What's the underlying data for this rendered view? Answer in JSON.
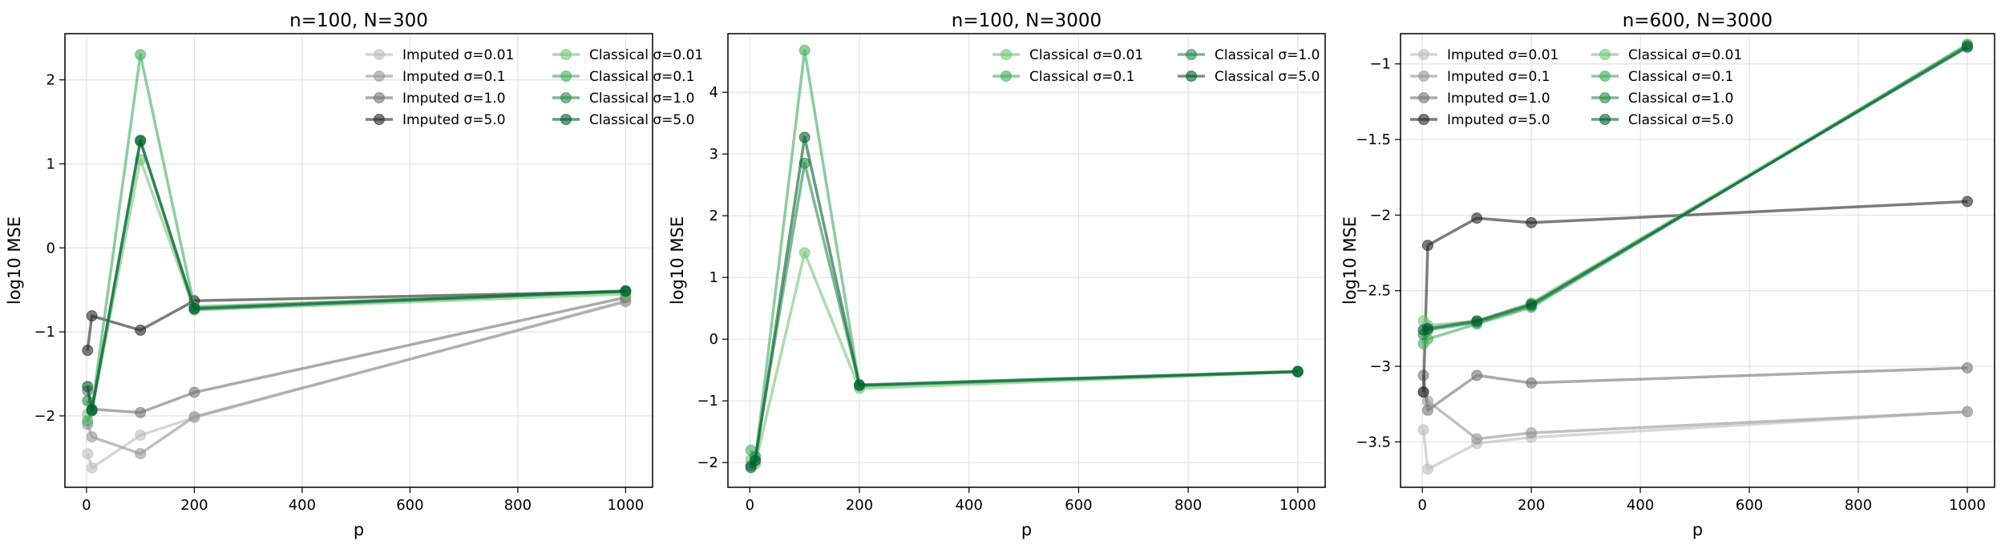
{
  "chart_data": [
    {
      "type": "line",
      "title": "n=100, N=300",
      "xlabel": "p",
      "ylabel": "log10 MSE",
      "xlim": [
        -40,
        1050
      ],
      "ylim": [
        -2.85,
        2.55
      ],
      "xticks": [
        0,
        200,
        400,
        600,
        800,
        1000
      ],
      "yticks": [
        -2,
        -1,
        0,
        1,
        2
      ],
      "grid": true,
      "legend": "upper right, 2 columns",
      "series": [
        {
          "name": "Imputed σ=0.01",
          "color": "#bdbdbd",
          "x": [
            2,
            10,
            100,
            200,
            1000
          ],
          "y": [
            -2.45,
            -2.62,
            -2.23,
            -2.02,
            -0.63
          ]
        },
        {
          "name": "Imputed σ=0.1",
          "color": "#969696",
          "x": [
            2,
            10,
            100,
            200,
            1000
          ],
          "y": [
            -2.1,
            -2.25,
            -2.45,
            -2.01,
            -0.64
          ]
        },
        {
          "name": "Imputed σ=1.0",
          "color": "#737373",
          "x": [
            2,
            10,
            100,
            200,
            1000
          ],
          "y": [
            -1.7,
            -1.92,
            -1.96,
            -1.72,
            -0.59
          ]
        },
        {
          "name": "Imputed σ=5.0",
          "color": "#252525",
          "x": [
            2,
            10,
            100,
            200,
            1000
          ],
          "y": [
            -1.22,
            -0.81,
            -0.98,
            -0.63,
            -0.52
          ]
        },
        {
          "name": "Classical σ=0.01",
          "color": "#74c476",
          "x": [
            2,
            10,
            100,
            200,
            1000
          ],
          "y": [
            -1.98,
            -1.93,
            1.05,
            -0.74,
            -0.55
          ]
        },
        {
          "name": "Classical σ=0.1",
          "color": "#41ab5d",
          "x": [
            2,
            10,
            100,
            200,
            1000
          ],
          "y": [
            -2.06,
            -1.92,
            2.3,
            -0.7,
            -0.52
          ]
        },
        {
          "name": "Classical σ=1.0",
          "color": "#238b45",
          "x": [
            2,
            10,
            100,
            200,
            1000
          ],
          "y": [
            -1.82,
            -1.94,
            1.27,
            -0.73,
            -0.52
          ]
        },
        {
          "name": "Classical σ=5.0",
          "color": "#005a32",
          "x": [
            2,
            10,
            100,
            200,
            1000
          ],
          "y": [
            -1.65,
            -1.93,
            1.28,
            -0.72,
            -0.51
          ]
        }
      ]
    },
    {
      "type": "line",
      "title": "n=100, N=3000",
      "xlabel": "p",
      "ylabel": "log10 MSE",
      "xlim": [
        -40,
        1050
      ],
      "ylim": [
        -2.4,
        4.95
      ],
      "xticks": [
        0,
        200,
        400,
        600,
        800,
        1000
      ],
      "yticks": [
        -2,
        -1,
        0,
        1,
        2,
        3,
        4
      ],
      "grid": true,
      "legend": "upper right, 2 columns",
      "series": [
        {
          "name": "Classical σ=0.01",
          "color": "#74c476",
          "x": [
            2,
            10,
            100,
            200,
            1000
          ],
          "y": [
            -1.95,
            -2.02,
            1.4,
            -0.8,
            -0.53
          ]
        },
        {
          "name": "Classical σ=0.1",
          "color": "#41ab5d",
          "x": [
            2,
            10,
            100,
            200,
            1000
          ],
          "y": [
            -1.8,
            -1.95,
            4.68,
            -0.76,
            -0.53
          ]
        },
        {
          "name": "Classical σ=1.0",
          "color": "#238b45",
          "x": [
            2,
            10,
            100,
            200,
            1000
          ],
          "y": [
            -2.05,
            -1.9,
            2.85,
            -0.75,
            -0.53
          ]
        },
        {
          "name": "Classical σ=5.0",
          "color": "#005a32",
          "x": [
            2,
            10,
            100,
            200,
            1000
          ],
          "y": [
            -2.08,
            -1.97,
            3.27,
            -0.74,
            -0.52
          ]
        }
      ]
    },
    {
      "type": "line",
      "title": "n=600, N=3000",
      "xlabel": "p",
      "ylabel": "log10 MSE",
      "xlim": [
        -40,
        1050
      ],
      "ylim": [
        -3.8,
        -0.8
      ],
      "xticks": [
        0,
        200,
        400,
        600,
        800,
        1000
      ],
      "yticks": [
        -3.5,
        -3.0,
        -2.5,
        -2.0,
        -1.5,
        -1.0
      ],
      "grid": true,
      "legend": "upper left, 2 columns",
      "series": [
        {
          "name": "Imputed σ=0.01",
          "color": "#bdbdbd",
          "x": [
            2,
            10,
            100,
            200,
            1000
          ],
          "y": [
            -3.42,
            -3.68,
            -3.51,
            -3.47,
            -3.3
          ]
        },
        {
          "name": "Imputed σ=0.1",
          "color": "#969696",
          "x": [
            2,
            10,
            100,
            200,
            1000
          ],
          "y": [
            -3.17,
            -3.23,
            -3.48,
            -3.44,
            -3.3
          ]
        },
        {
          "name": "Imputed σ=1.0",
          "color": "#737373",
          "x": [
            2,
            10,
            100,
            200,
            1000
          ],
          "y": [
            -3.06,
            -3.29,
            -3.06,
            -3.11,
            -3.01
          ]
        },
        {
          "name": "Imputed σ=5.0",
          "color": "#252525",
          "x": [
            2,
            10,
            100,
            200,
            1000
          ],
          "y": [
            -3.17,
            -2.2,
            -2.02,
            -2.05,
            -1.91
          ]
        },
        {
          "name": "Classical σ=0.01",
          "color": "#74c476",
          "x": [
            2,
            10,
            100,
            200,
            1000
          ],
          "y": [
            -2.7,
            -2.73,
            -2.7,
            -2.58,
            -0.88
          ]
        },
        {
          "name": "Classical σ=0.1",
          "color": "#41ab5d",
          "x": [
            2,
            10,
            100,
            200,
            1000
          ],
          "y": [
            -2.85,
            -2.82,
            -2.72,
            -2.61,
            -0.87
          ]
        },
        {
          "name": "Classical σ=1.0",
          "color": "#238b45",
          "x": [
            2,
            10,
            100,
            200,
            1000
          ],
          "y": [
            -2.79,
            -2.76,
            -2.71,
            -2.6,
            -0.88
          ]
        },
        {
          "name": "Classical σ=5.0",
          "color": "#005a32",
          "x": [
            2,
            10,
            100,
            200,
            1000
          ],
          "y": [
            -2.76,
            -2.75,
            -2.7,
            -2.59,
            -0.89
          ]
        }
      ]
    }
  ]
}
